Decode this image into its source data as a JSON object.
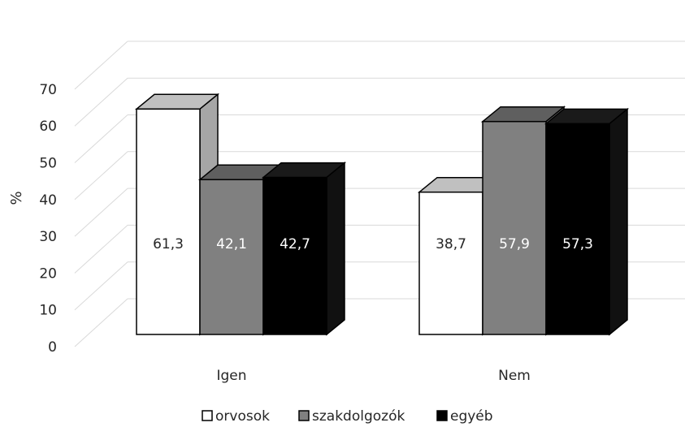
{
  "chart_data": {
    "type": "bar",
    "style": "3d-clustered-column",
    "ylabel": "%",
    "ylim": [
      0,
      70
    ],
    "yticks": [
      "0",
      "10",
      "20",
      "30",
      "40",
      "50",
      "60",
      "70"
    ],
    "grid": true,
    "legend_position": "bottom",
    "categories": [
      "Igen",
      "Nem"
    ],
    "series": [
      {
        "name": "orvosok",
        "color": "#ffffff",
        "values": [
          61.3,
          38.7
        ],
        "labels": [
          "61,3",
          "38,7"
        ]
      },
      {
        "name": "szakdolgozók",
        "color": "#808080",
        "values": [
          42.1,
          57.9
        ],
        "labels": [
          "42,1",
          "57,9"
        ]
      },
      {
        "name": "egyéb",
        "color": "#000000",
        "values": [
          42.7,
          57.3
        ],
        "labels": [
          "42,7",
          "57,3"
        ]
      }
    ]
  }
}
